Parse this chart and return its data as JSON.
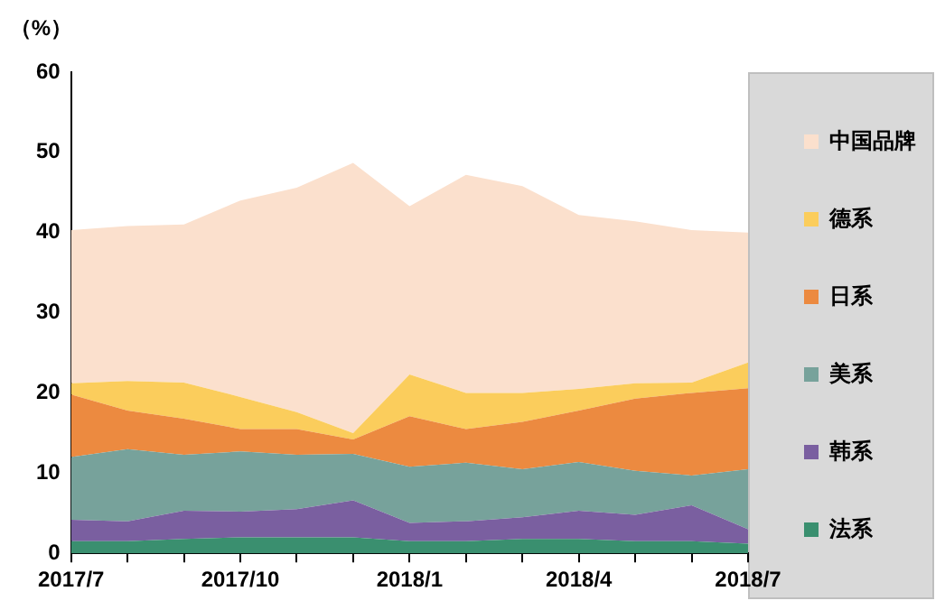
{
  "chart_data": {
    "type": "area",
    "stacked": true,
    "ylabel": "（%）",
    "categories": [
      "2017/7",
      null,
      null,
      "2017/10",
      null,
      null,
      "2018/1",
      null,
      null,
      "2018/4",
      null,
      null,
      "2018/7"
    ],
    "series": [
      {
        "name": "法系",
        "color": "#3a8f6f",
        "values": [
          1.5,
          1.5,
          1.8,
          2,
          2,
          2,
          1.5,
          1.5,
          1.8,
          1.8,
          1.5,
          1.5,
          1.2
        ]
      },
      {
        "name": "韩系",
        "color": "#7a5fa0",
        "values": [
          2.7,
          2.5,
          3.5,
          3.2,
          3.5,
          4.6,
          2.3,
          2.5,
          2.7,
          3.5,
          3.3,
          4.5,
          1.8
        ]
      },
      {
        "name": "美系",
        "color": "#77a29b",
        "values": [
          7.8,
          9,
          7,
          7.5,
          6.8,
          5.8,
          7,
          7.3,
          6,
          6.1,
          5.5,
          3.7,
          7.5
        ]
      },
      {
        "name": "日系",
        "color": "#ec8a40",
        "values": [
          7.8,
          4.8,
          4.5,
          2.8,
          3.2,
          1.8,
          6.3,
          4.2,
          5.9,
          6.4,
          9,
          10.3,
          10.1
        ]
      },
      {
        "name": "德系",
        "color": "#fbcd5c",
        "values": [
          1.4,
          3.7,
          4.5,
          4,
          2.1,
          0.8,
          5.2,
          4.5,
          3.6,
          2.7,
          1.9,
          1.3,
          3.2
        ]
      },
      {
        "name": "中国品牌",
        "color": "#fbe0cd",
        "values": [
          19.1,
          19.3,
          19.7,
          24.5,
          28,
          33.7,
          21,
          27.2,
          25.8,
          21.7,
          20.2,
          19,
          16.2
        ]
      }
    ],
    "ylim": [
      0,
      60
    ],
    "yticks": [
      0,
      10,
      20,
      30,
      40,
      50,
      60
    ],
    "grid": false,
    "legend": "right"
  }
}
